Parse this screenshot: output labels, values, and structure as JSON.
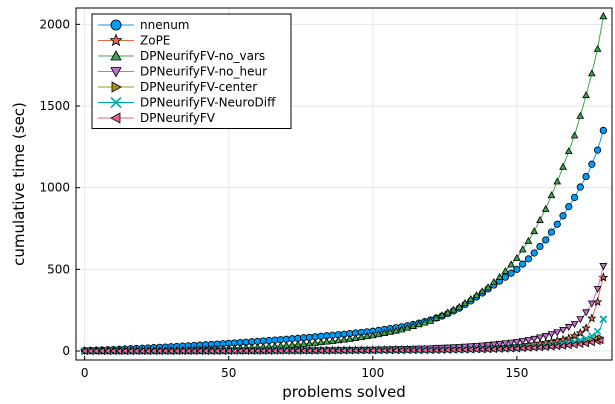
{
  "chart_data": {
    "type": "scatter",
    "title": "",
    "xlabel": "problems solved",
    "ylabel": "cumulative time (sec)",
    "xlim": [
      -3,
      183
    ],
    "ylim": [
      -55,
      2100
    ],
    "xticks": [
      0,
      50,
      100,
      150
    ],
    "yticks": [
      0,
      500,
      1000,
      1500,
      2000
    ],
    "grid": true,
    "legend_position": "top-left",
    "series": [
      {
        "name": "nnenum",
        "color": "#009AFA",
        "marker": "circle",
        "points": [
          [
            0,
            2
          ],
          [
            10,
            9
          ],
          [
            20,
            17
          ],
          [
            30,
            26
          ],
          [
            40,
            36
          ],
          [
            50,
            47
          ],
          [
            60,
            59
          ],
          [
            70,
            72
          ],
          [
            80,
            87
          ],
          [
            90,
            103
          ],
          [
            100,
            121
          ],
          [
            110,
            148
          ],
          [
            115,
            166
          ],
          [
            120,
            190
          ],
          [
            125,
            220
          ],
          [
            130,
            262
          ],
          [
            135,
            318
          ],
          [
            140,
            380
          ],
          [
            145,
            440
          ],
          [
            150,
            500
          ],
          [
            155,
            580
          ],
          [
            160,
            680
          ],
          [
            165,
            800
          ],
          [
            170,
            940
          ],
          [
            175,
            1100
          ],
          [
            178,
            1230
          ],
          [
            180,
            1350
          ]
        ]
      },
      {
        "name": "ZoPE",
        "color": "#E36F47",
        "marker": "star",
        "points": [
          [
            0,
            0
          ],
          [
            20,
            0
          ],
          [
            40,
            1
          ],
          [
            60,
            2
          ],
          [
            80,
            4
          ],
          [
            100,
            6
          ],
          [
            120,
            10
          ],
          [
            130,
            15
          ],
          [
            140,
            22
          ],
          [
            150,
            32
          ],
          [
            155,
            40
          ],
          [
            160,
            52
          ],
          [
            165,
            66
          ],
          [
            168,
            78
          ],
          [
            170,
            92
          ],
          [
            172,
            110
          ],
          [
            174,
            140
          ],
          [
            176,
            200
          ],
          [
            178,
            300
          ],
          [
            179,
            390
          ],
          [
            180,
            450
          ]
        ]
      },
      {
        "name": "DPNeurifyFV-no_vars",
        "color": "#3EA44E",
        "marker": "triangle-up",
        "points": [
          [
            0,
            0
          ],
          [
            10,
            1
          ],
          [
            20,
            3
          ],
          [
            30,
            6
          ],
          [
            40,
            10
          ],
          [
            50,
            16
          ],
          [
            60,
            24
          ],
          [
            70,
            35
          ],
          [
            80,
            50
          ],
          [
            90,
            70
          ],
          [
            100,
            96
          ],
          [
            110,
            132
          ],
          [
            120,
            185
          ],
          [
            130,
            270
          ],
          [
            140,
            390
          ],
          [
            145,
            470
          ],
          [
            150,
            570
          ],
          [
            155,
            700
          ],
          [
            160,
            870
          ],
          [
            165,
            1080
          ],
          [
            170,
            1320
          ],
          [
            173,
            1500
          ],
          [
            176,
            1700
          ],
          [
            178,
            1850
          ],
          [
            180,
            2050
          ]
        ]
      },
      {
        "name": "DPNeurifyFV-no_heur",
        "color": "#C371D2",
        "marker": "triangle-down",
        "points": [
          [
            0,
            0
          ],
          [
            20,
            0
          ],
          [
            40,
            1
          ],
          [
            60,
            2
          ],
          [
            80,
            4
          ],
          [
            100,
            8
          ],
          [
            120,
            16
          ],
          [
            130,
            24
          ],
          [
            140,
            36
          ],
          [
            150,
            55
          ],
          [
            155,
            70
          ],
          [
            160,
            92
          ],
          [
            165,
            120
          ],
          [
            170,
            165
          ],
          [
            173,
            210
          ],
          [
            176,
            290
          ],
          [
            178,
            380
          ],
          [
            180,
            520
          ]
        ]
      },
      {
        "name": "DPNeurifyFV-center",
        "color": "#AC8E18",
        "marker": "triangle-right",
        "points": [
          [
            0,
            0
          ],
          [
            40,
            0
          ],
          [
            80,
            2
          ],
          [
            120,
            6
          ],
          [
            140,
            12
          ],
          [
            150,
            18
          ],
          [
            160,
            28
          ],
          [
            165,
            36
          ],
          [
            170,
            48
          ],
          [
            174,
            60
          ],
          [
            177,
            72
          ],
          [
            179,
            80
          ]
        ]
      },
      {
        "name": "DPNeurifyFV-NeuroDiff",
        "color": "#00A9AD",
        "marker": "x",
        "points": [
          [
            0,
            0
          ],
          [
            40,
            0
          ],
          [
            80,
            2
          ],
          [
            120,
            6
          ],
          [
            140,
            12
          ],
          [
            150,
            18
          ],
          [
            160,
            30
          ],
          [
            165,
            40
          ],
          [
            170,
            55
          ],
          [
            174,
            75
          ],
          [
            177,
            100
          ],
          [
            179,
            140
          ],
          [
            180,
            195
          ]
        ]
      },
      {
        "name": "DPNeurifyFV",
        "color": "#ED5E93",
        "marker": "triangle-left",
        "points": [
          [
            0,
            0
          ],
          [
            40,
            0
          ],
          [
            80,
            2
          ],
          [
            120,
            5
          ],
          [
            140,
            10
          ],
          [
            150,
            15
          ],
          [
            160,
            24
          ],
          [
            165,
            30
          ],
          [
            170,
            38
          ],
          [
            174,
            46
          ],
          [
            177,
            55
          ],
          [
            179,
            65
          ]
        ]
      }
    ]
  }
}
